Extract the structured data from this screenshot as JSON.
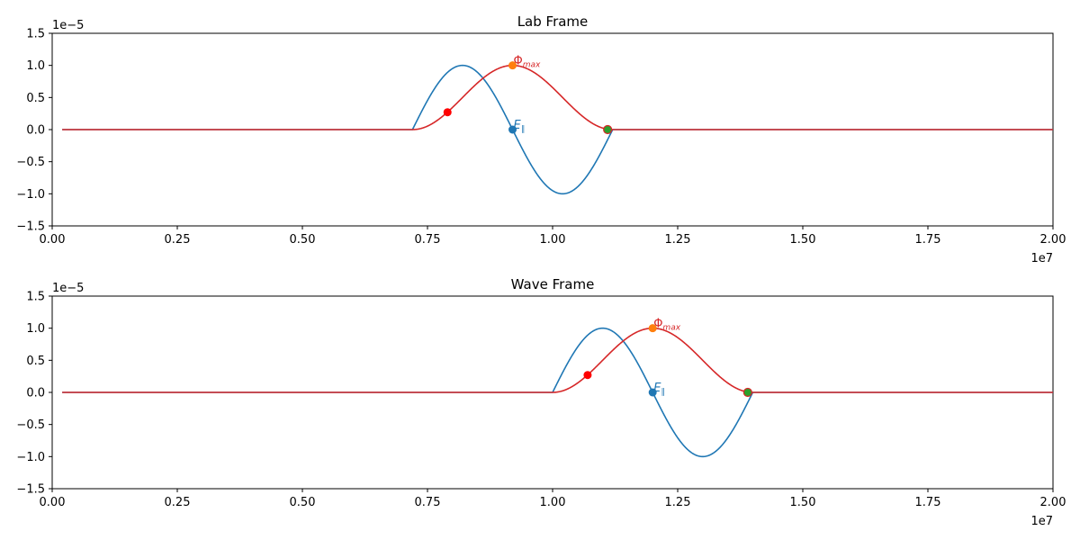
{
  "chart_data": [
    {
      "type": "line",
      "title": "Lab Frame",
      "xlim": [
        0,
        20000000
      ],
      "ylim": [
        -1.5e-05,
        1.5e-05
      ],
      "x_ticks": [
        0,
        2500000,
        5000000,
        7500000,
        10000000,
        12500000,
        15000000,
        17500000,
        20000000
      ],
      "x_tick_labels": [
        "0.00",
        "0.25",
        "0.50",
        "0.75",
        "1.00",
        "1.25",
        "1.50",
        "1.75",
        "2.00"
      ],
      "y_ticks": [
        -1.5e-05,
        -1e-05,
        -5e-06,
        0,
        5e-06,
        1e-05,
        1.5e-05
      ],
      "y_tick_labels": [
        "−1.5",
        "−1.0",
        "−0.5",
        "0.0",
        "0.5",
        "1.0",
        "1.5"
      ],
      "x_offset_label": "1e7",
      "y_offset_label": "1e−5",
      "series": [
        {
          "name": "E_parallel",
          "color": "#1f77b4",
          "kind": "sine_pulse",
          "start": 7200000,
          "end": 11200000,
          "amplitude": 1e-05
        },
        {
          "name": "Phi",
          "color": "#d62728",
          "kind": "cosine_bump",
          "start": 7200000,
          "end": 11200000,
          "amplitude": 1e-05
        }
      ],
      "markers": [
        {
          "name": "phi-start-point",
          "x": 7900000,
          "y": 2.7e-06,
          "color": "#ff0000"
        },
        {
          "name": "phi-max-point",
          "x": 9200000,
          "y": 1e-05,
          "color": "#ff7f0e"
        },
        {
          "name": "e-parallel-point",
          "x": 9200000,
          "y": 0,
          "color": "#1f77b4"
        },
        {
          "name": "phi-end-point",
          "x": 11100000,
          "y": 0,
          "color": "#2ca02c",
          "edge": "#d62728"
        }
      ],
      "annotations": [
        {
          "name": "phi-max-label",
          "symbol": "Φ",
          "sub": "max",
          "x": 9200000,
          "y": 1e-05,
          "color": "#d62728"
        },
        {
          "name": "e-parallel-label",
          "symbol": "E",
          "sub": "∥",
          "x": 9200000,
          "y": 0,
          "color": "#1f77b4"
        }
      ]
    },
    {
      "type": "line",
      "title": "Wave Frame",
      "xlim": [
        0,
        20000000
      ],
      "ylim": [
        -1.5e-05,
        1.5e-05
      ],
      "x_ticks": [
        0,
        2500000,
        5000000,
        7500000,
        10000000,
        12500000,
        15000000,
        17500000,
        20000000
      ],
      "x_tick_labels": [
        "0.00",
        "0.25",
        "0.50",
        "0.75",
        "1.00",
        "1.25",
        "1.50",
        "1.75",
        "2.00"
      ],
      "y_ticks": [
        -1.5e-05,
        -1e-05,
        -5e-06,
        0,
        5e-06,
        1e-05,
        1.5e-05
      ],
      "y_tick_labels": [
        "−1.5",
        "−1.0",
        "−0.5",
        "0.0",
        "0.5",
        "1.0",
        "1.5"
      ],
      "x_offset_label": "1e7",
      "y_offset_label": "1e−5",
      "series": [
        {
          "name": "E_parallel",
          "color": "#1f77b4",
          "kind": "sine_pulse",
          "start": 10000000,
          "end": 14000000,
          "amplitude": 1e-05
        },
        {
          "name": "Phi",
          "color": "#d62728",
          "kind": "cosine_bump",
          "start": 10000000,
          "end": 14000000,
          "amplitude": 1e-05
        }
      ],
      "markers": [
        {
          "name": "phi-start-point",
          "x": 10700000,
          "y": 2.7e-06,
          "color": "#ff0000"
        },
        {
          "name": "phi-max-point",
          "x": 12000000,
          "y": 1e-05,
          "color": "#ff7f0e"
        },
        {
          "name": "e-parallel-point",
          "x": 12000000,
          "y": 0,
          "color": "#1f77b4"
        },
        {
          "name": "phi-end-point",
          "x": 13900000,
          "y": 0,
          "color": "#2ca02c",
          "edge": "#d62728"
        }
      ],
      "annotations": [
        {
          "name": "phi-max-label",
          "symbol": "Φ",
          "sub": "max",
          "x": 12000000,
          "y": 1e-05,
          "color": "#d62728"
        },
        {
          "name": "e-parallel-label",
          "symbol": "E",
          "sub": "∥",
          "x": 12000000,
          "y": 0,
          "color": "#1f77b4"
        }
      ]
    }
  ]
}
